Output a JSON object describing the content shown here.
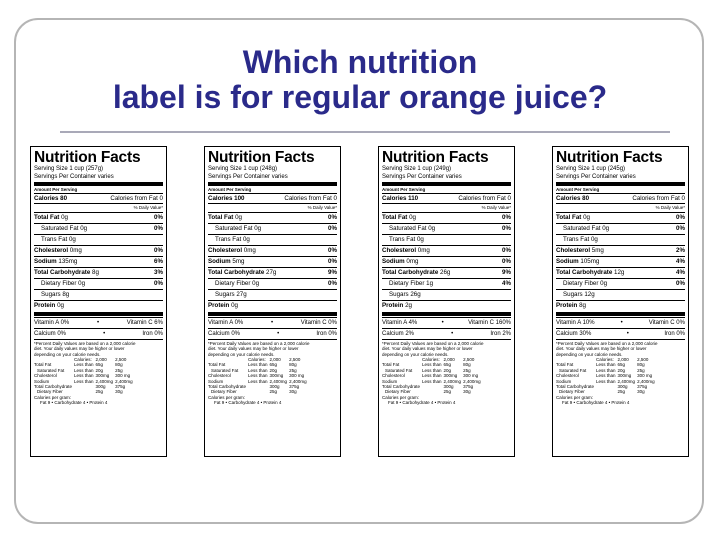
{
  "slide": {
    "title_line1": "Which nutrition",
    "title_line2": "label is for regular orange juice?"
  },
  "common": {
    "heading": "Nutrition Facts",
    "servings": "Servings Per Container varies",
    "amount_per_serving": "Amount Per Serving",
    "dv_header": "% Daily Value*",
    "total_fat_label": "Total Fat",
    "sat_fat_label": "Saturated Fat",
    "trans_fat_label": "Trans Fat",
    "cholesterol_label": "Cholesterol",
    "sodium_label": "Sodium",
    "carb_label": "Total Carbohydrate",
    "fiber_label": "Dietary Fiber",
    "sugars_label": "Sugars",
    "protein_label": "Protein",
    "footnote_1": "*Percent Daily Values are based on a 2,000 calorie",
    "footnote_2": "diet. Your daily values may be higher or lower",
    "footnote_3": "depending on your calorie needs.",
    "foot_cal_header": "Calories:",
    "foot_cal_2000": "2,000",
    "foot_cal_2500": "2,500",
    "foot_rows": [
      {
        "a": "Total Fat",
        "b": "Less than",
        "c": "65g",
        "d": "80g"
      },
      {
        "a": "Saturated Fat",
        "b": "Less than",
        "c": "20g",
        "d": "25g"
      },
      {
        "a": "Cholesterol",
        "b": "Less than",
        "c": "300mg",
        "d": "300 mg"
      },
      {
        "a": "Sodium",
        "b": "Less than",
        "c": "2,400mg",
        "d": "2,400mg"
      },
      {
        "a": "Total Carbohydrate",
        "b": "",
        "c": "300g",
        "d": "375g"
      },
      {
        "a": "Dietary Fiber",
        "b": "",
        "c": "25g",
        "d": "30g"
      }
    ],
    "cal_per_gram": "Calories per gram:",
    "cal_per_gram_values": "Fat 9  •  Carbohydrate 4  •  Protein 4"
  },
  "labels": [
    {
      "serving_size": "Serving Size 1 cup (257g)",
      "calories": "Calories 80",
      "calories_from_fat": "Calories from Fat 0",
      "total_fat": "0g",
      "total_fat_dv": "0%",
      "sat_fat": "0g",
      "sat_fat_dv": "0%",
      "trans_fat": "0g",
      "cholesterol": "0mg",
      "cholesterol_dv": "0%",
      "sodium": "135mg",
      "sodium_dv": "6%",
      "carb": "8g",
      "carb_dv": "3%",
      "fiber": "0g",
      "fiber_dv": "0%",
      "sugars": "8g",
      "protein": "0g",
      "vit_a": "Vitamin A 0%",
      "vit_c": "Vitamin C 6%",
      "calcium": "Calcium 0%",
      "iron": "Iron 0%"
    },
    {
      "serving_size": "Serving Size 1 cup (248g)",
      "calories": "Calories 100",
      "calories_from_fat": "Calories from Fat 0",
      "total_fat": "0g",
      "total_fat_dv": "0%",
      "sat_fat": "0g",
      "sat_fat_dv": "0%",
      "trans_fat": "0g",
      "cholesterol": "0mg",
      "cholesterol_dv": "0%",
      "sodium": "5mg",
      "sodium_dv": "0%",
      "carb": "27g",
      "carb_dv": "9%",
      "fiber": "0g",
      "fiber_dv": "0%",
      "sugars": "27g",
      "protein": "0g",
      "vit_a": "Vitamin A 0%",
      "vit_c": "Vitamin C 0%",
      "calcium": "Calcium 0%",
      "iron": "Iron 0%"
    },
    {
      "serving_size": "Serving Size 1 cup (249g)",
      "calories": "Calories 110",
      "calories_from_fat": "Calories from Fat 0",
      "total_fat": "0g",
      "total_fat_dv": "0%",
      "sat_fat": "0g",
      "sat_fat_dv": "0%",
      "trans_fat": "0g",
      "cholesterol": "0mg",
      "cholesterol_dv": "0%",
      "sodium": "0mg",
      "sodium_dv": "0%",
      "carb": "26g",
      "carb_dv": "9%",
      "fiber": "1g",
      "fiber_dv": "4%",
      "sugars": "26g",
      "protein": "2g",
      "vit_a": "Vitamin A 4%",
      "vit_c": "Vitamin C 160%",
      "calcium": "Calcium 2%",
      "iron": "Iron 2%"
    },
    {
      "serving_size": "Serving Size 1 cup (245g)",
      "calories": "Calories 80",
      "calories_from_fat": "Calories from Fat 0",
      "total_fat": "0g",
      "total_fat_dv": "0%",
      "sat_fat": "0g",
      "sat_fat_dv": "0%",
      "trans_fat": "0g",
      "cholesterol": "5mg",
      "cholesterol_dv": "2%",
      "sodium": "105mg",
      "sodium_dv": "4%",
      "carb": "12g",
      "carb_dv": "4%",
      "fiber": "0g",
      "fiber_dv": "0%",
      "sugars": "12g",
      "protein": "8g",
      "vit_a": "Vitamin A 10%",
      "vit_c": "Vitamin C 0%",
      "calcium": "Calcium 30%",
      "iron": "Iron 0%"
    }
  ]
}
